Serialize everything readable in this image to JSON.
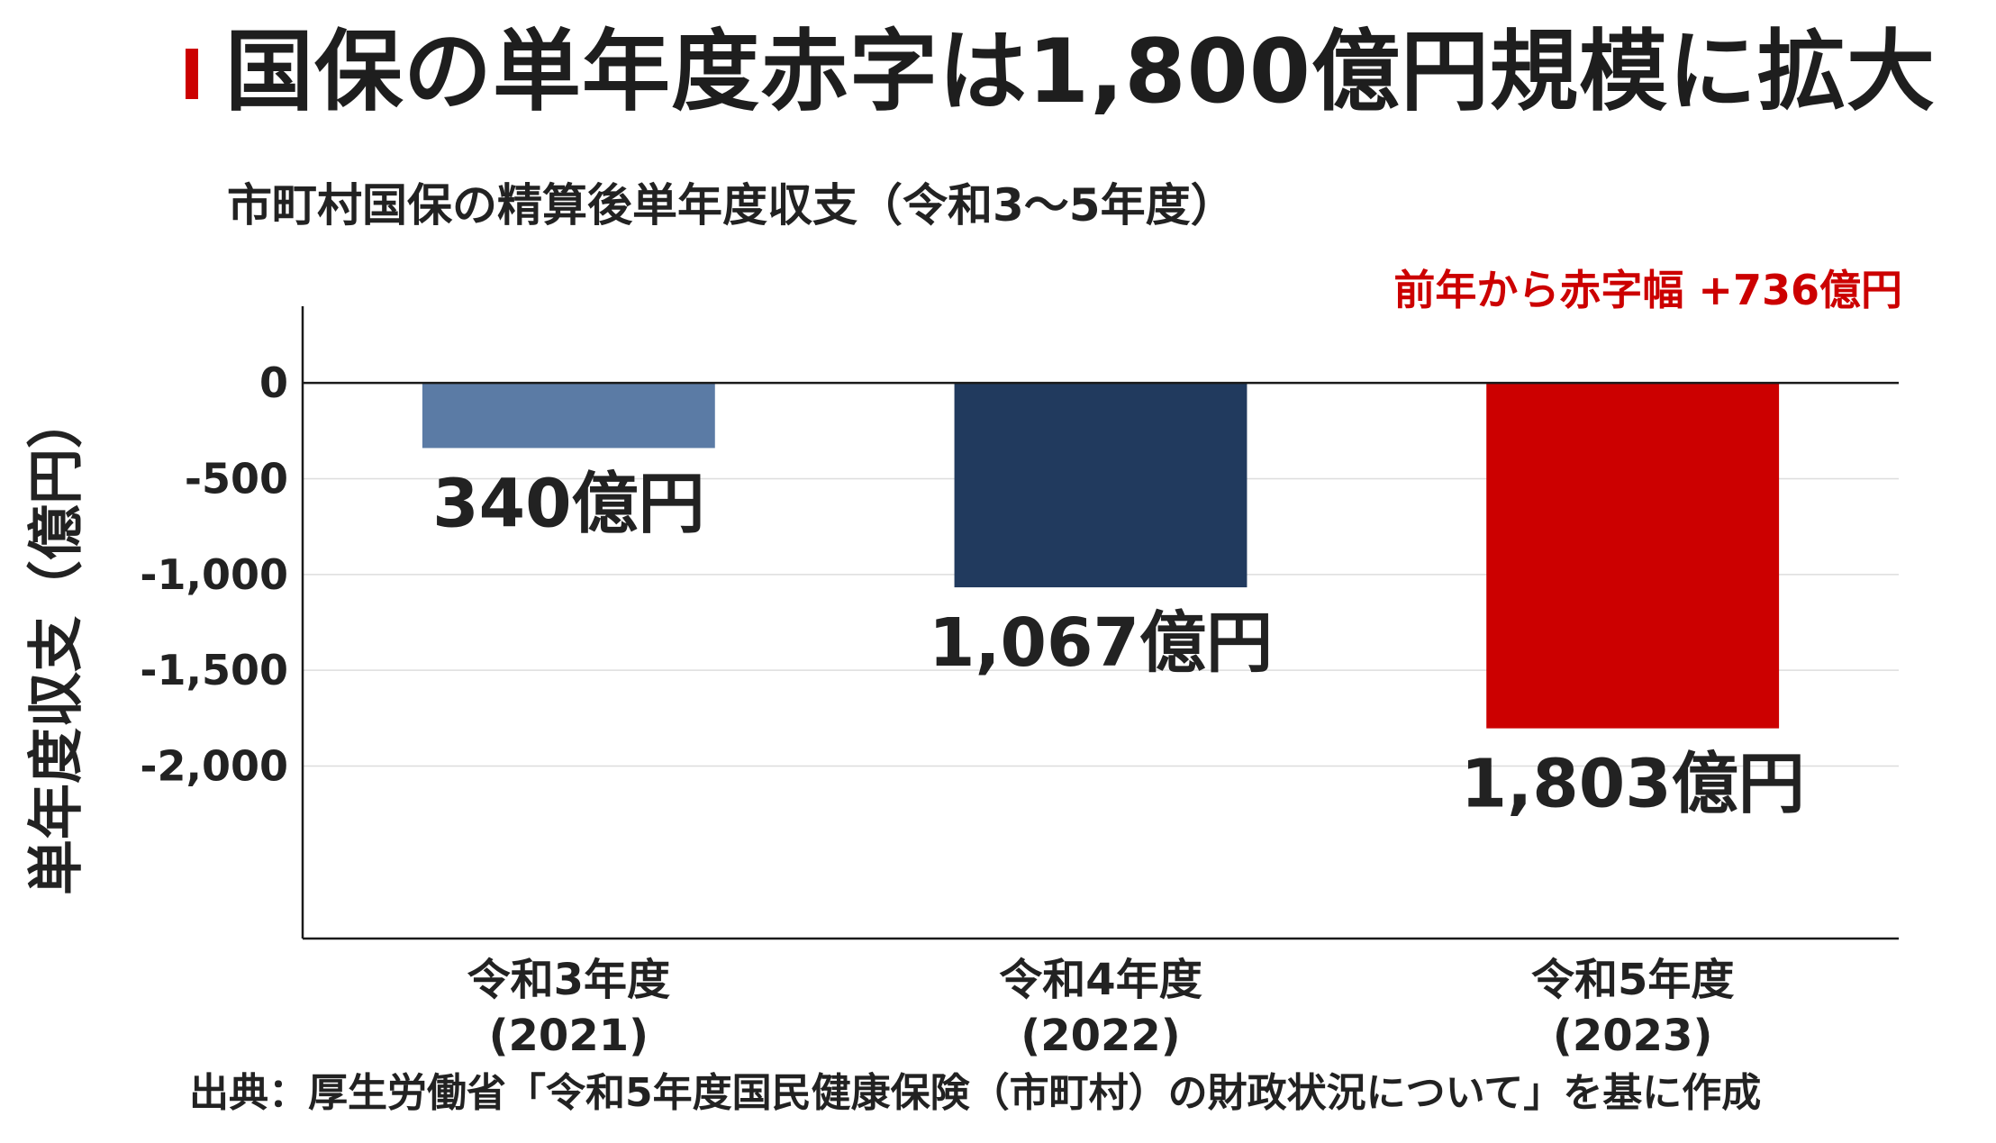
{
  "headline": "国保の単年度赤字は1,800億円規模に拡大",
  "colors": {
    "accent": "#cc0000",
    "bar_2021": "#5b7ba5",
    "bar_2022": "#213a5e",
    "bar_2023": "#cc0000",
    "annotation": "#cc0000",
    "text": "#222222"
  },
  "chart_data": {
    "type": "bar",
    "title": "市町村国保の精算後単年度収支（令和3〜5年度）",
    "ylabel": "単年度収支（億円）",
    "xlabel": "",
    "categories": [
      [
        "令和3年度",
        "(2021)"
      ],
      [
        "令和4年度",
        "(2022)"
      ],
      [
        "令和5年度",
        "(2023)"
      ]
    ],
    "values": [
      -340,
      -1067,
      -1803
    ],
    "value_labels": [
      "340億円",
      "1,067億円",
      "1,803億円"
    ],
    "bar_colors": [
      "#5b7ba5",
      "#213a5e",
      "#cc0000"
    ],
    "yticks": [
      0,
      -500,
      -1000,
      -1500,
      -2000
    ],
    "ytick_labels": [
      "0",
      "-500",
      "-1,000",
      "-1,500",
      "-2,000"
    ],
    "ylim": [
      -2900,
      400
    ],
    "grid": true,
    "annotation": "前年から赤字幅 +736億円"
  },
  "source": "出典：厚生労働省「令和5年度国民健康保険（市町村）の財政状況について」を基に作成"
}
